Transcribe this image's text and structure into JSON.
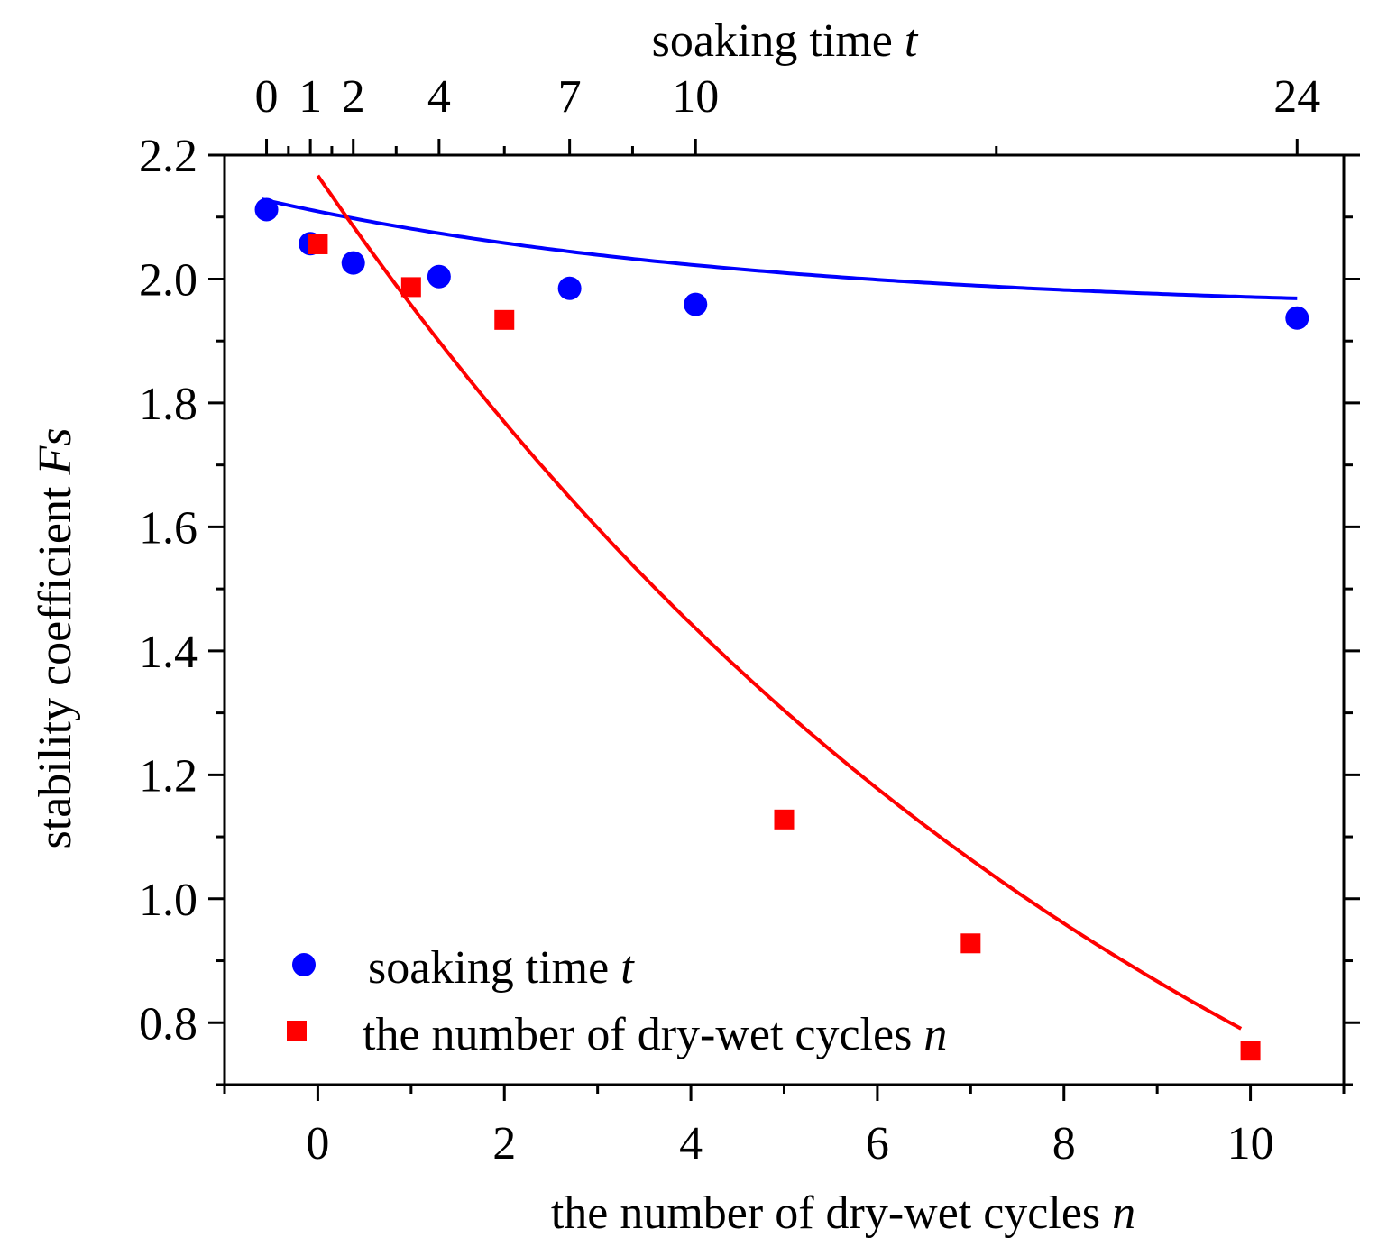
{
  "chart_data": {
    "type": "scatter",
    "ylabel": "stability coefficient ",
    "ylabel_italic": "Fs",
    "xlabel": "the number of dry-wet cycles ",
    "xlabel_italic": "n",
    "top_xlabel": "soaking time ",
    "top_xlabel_italic": "t",
    "ylim": [
      0.7,
      2.2
    ],
    "yticks": [
      "0.8",
      "1.0",
      "1.2",
      "1.4",
      "1.6",
      "1.8",
      "2.0",
      "2.2"
    ],
    "xlim": [
      -1,
      11
    ],
    "xticks": [
      "0",
      "2",
      "4",
      "6",
      "8",
      "10"
    ],
    "top_xticks": [
      "0",
      "1",
      "2",
      "4",
      "7",
      "10",
      "24"
    ],
    "top_xtick_positions_n": [
      -0.55,
      -0.08,
      0.38,
      1.3,
      2.7,
      4.05,
      10.5
    ],
    "series": [
      {
        "name": "soaking time ",
        "name_italic": "t",
        "marker": "circle",
        "color": "#0000ff",
        "x": [
          -0.55,
          -0.08,
          0.38,
          1.3,
          2.7,
          4.05,
          10.5
        ],
        "t": [
          0,
          1,
          2,
          4,
          7,
          10,
          24
        ],
        "y": [
          2.112,
          2.057,
          2.026,
          2.004,
          1.985,
          1.959,
          1.937
        ],
        "fit": {
          "a": 0.1826,
          "b": 0.1875,
          "c": 1.946,
          "x0": -0.6,
          "x1": 10.5
        }
      },
      {
        "name": "the number of dry-wet cycles ",
        "name_italic": "n",
        "marker": "square",
        "color": "#ff0000",
        "x": [
          0,
          1,
          2,
          5,
          7,
          10
        ],
        "y": [
          2.056,
          1.987,
          1.934,
          1.128,
          0.928,
          0.755
        ],
        "fit": {
          "a": 2.183,
          "b": 0.1006,
          "c": -0.016,
          "x0": 0,
          "x1": 9.9
        }
      }
    ]
  }
}
